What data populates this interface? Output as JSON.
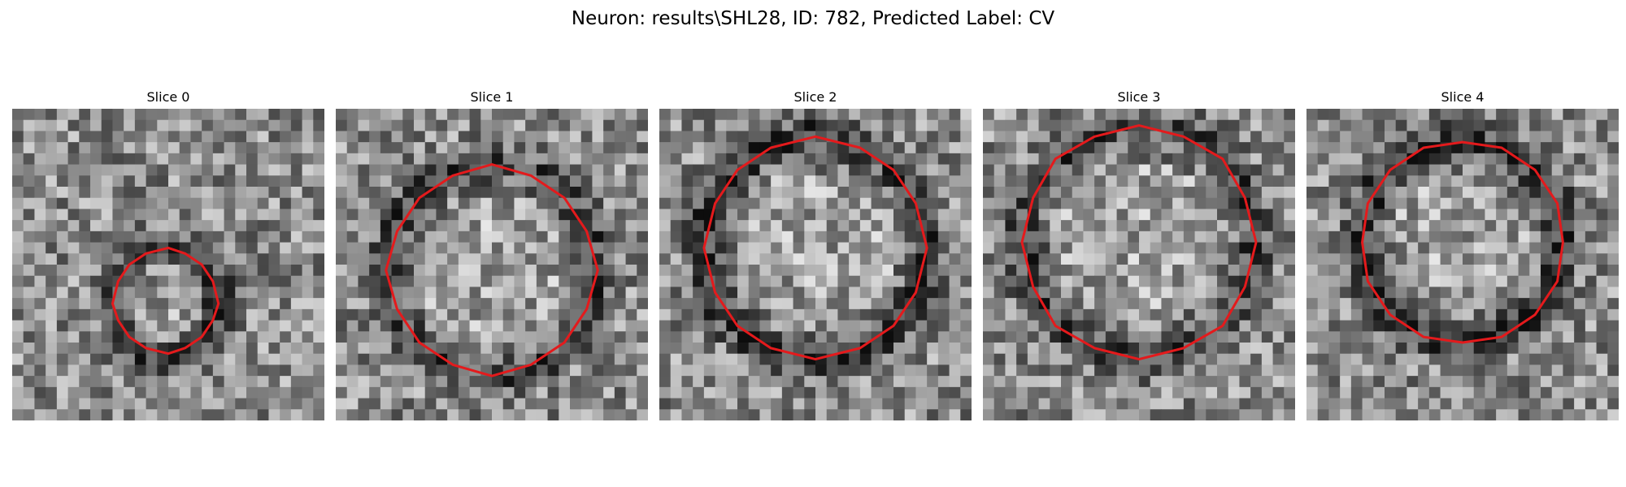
{
  "figure": {
    "title": "Neuron: results\\SHL28, ID: 782, Predicted Label: CV",
    "contour_color": "#e41a1c",
    "colormap": "gray",
    "grid_size": 28,
    "slices": [
      {
        "title": "Slice 0",
        "contour_center": [
          13.8,
          17.3
        ],
        "contour_radius": 4.8,
        "ring_dark": 0.55,
        "seed": 11
      },
      {
        "title": "Slice 1",
        "contour_center": [
          14.0,
          14.5
        ],
        "contour_radius": 9.4,
        "ring_dark": 0.45,
        "seed": 23
      },
      {
        "title": "Slice 2",
        "contour_center": [
          14.0,
          12.5
        ],
        "contour_radius": 10.0,
        "ring_dark": 0.6,
        "seed": 37
      },
      {
        "title": "Slice 3",
        "contour_center": [
          14.0,
          12.0
        ],
        "contour_radius": 10.4,
        "ring_dark": 0.5,
        "seed": 41
      },
      {
        "title": "Slice 4",
        "contour_center": [
          14.0,
          12.0
        ],
        "contour_radius": 9.0,
        "ring_dark": 0.6,
        "seed": 53
      }
    ]
  }
}
